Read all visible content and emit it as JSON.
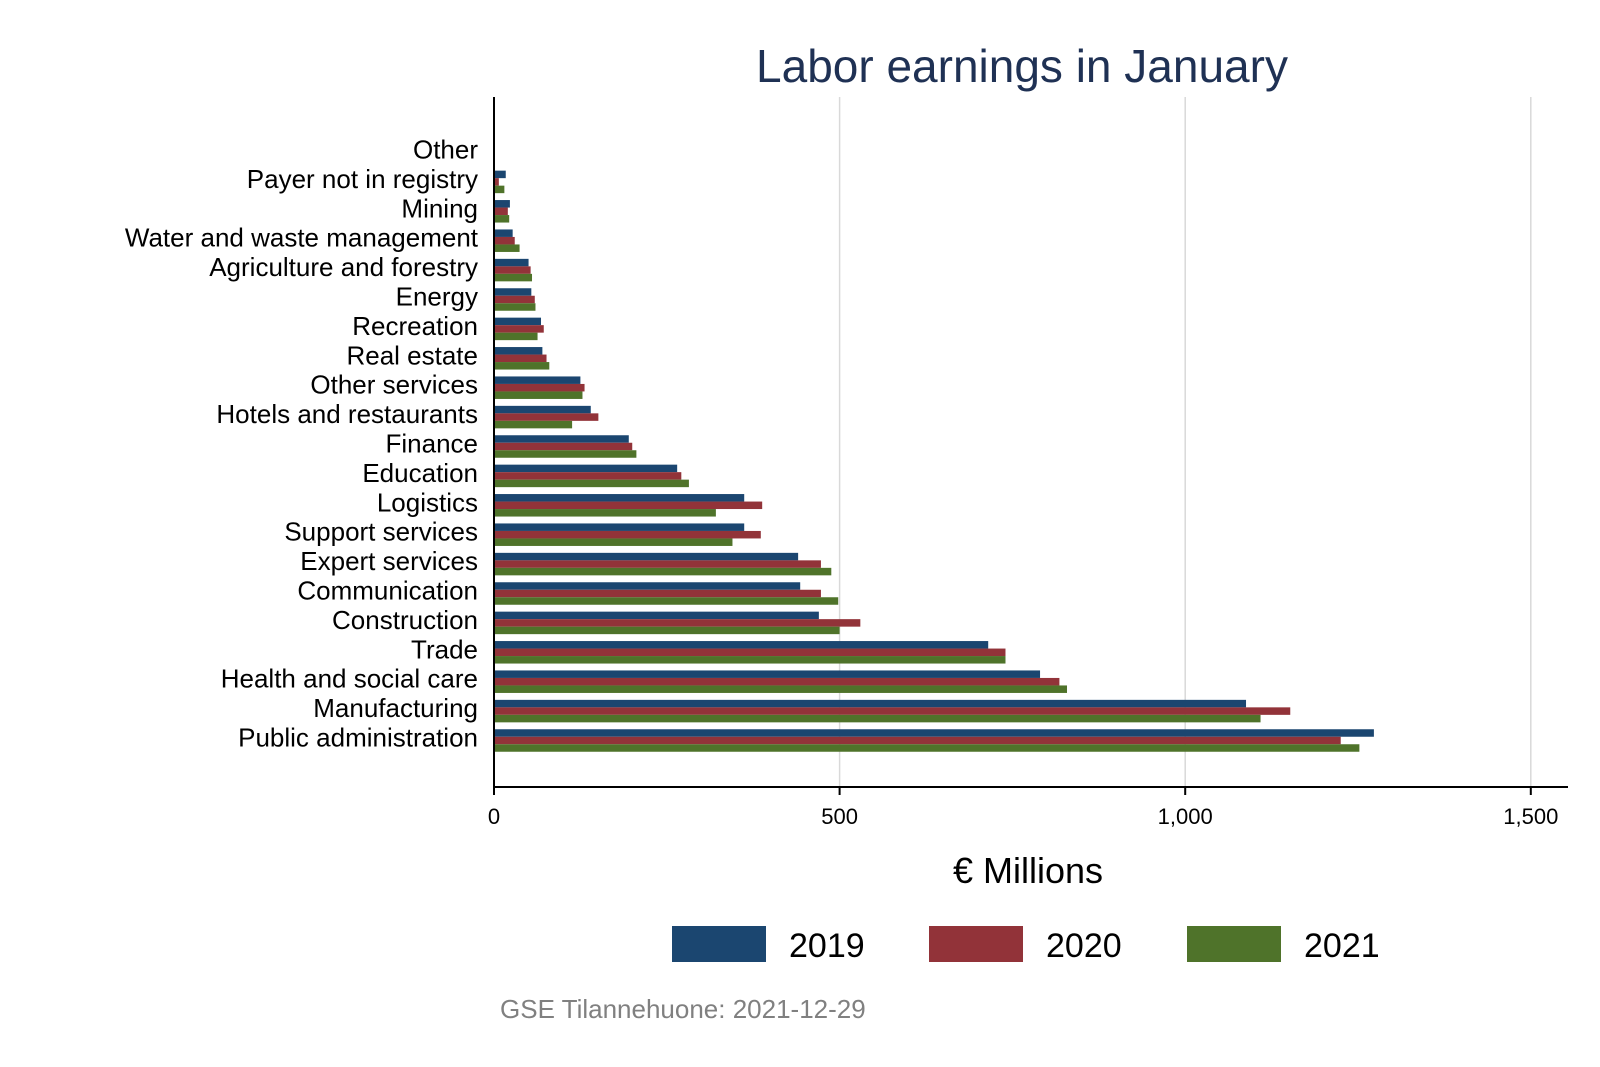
{
  "chart_data": {
    "type": "bar",
    "orientation": "horizontal",
    "title": "Labor earnings in January",
    "xlabel": "€ Millions",
    "xlim": [
      0,
      1550
    ],
    "xticks": [
      0,
      500,
      1000,
      1500
    ],
    "xtick_labels": [
      "0",
      "500",
      "1,000",
      "1,500"
    ],
    "grid": true,
    "legend_position": "bottom",
    "source_note": "GSE Tilannehuone: 2021-12-29",
    "categories": [
      "Other",
      "Payer not in registry",
      "Mining",
      "Water and waste management",
      "Agriculture and forestry",
      "Energy",
      "Recreation",
      "Real estate",
      "Other services",
      "Hotels and restaurants",
      "Finance",
      "Education",
      "Logistics",
      "Support services",
      "Expert services",
      "Communication",
      "Construction",
      "Trade",
      "Health and social care",
      "Manufacturing",
      "Public administration"
    ],
    "series": [
      {
        "name": "2019",
        "color": "#1b4670",
        "values": [
          1,
          17,
          23,
          27,
          50,
          54,
          68,
          70,
          125,
          140,
          195,
          265,
          362,
          362,
          440,
          443,
          470,
          715,
          790,
          1088,
          1273
        ]
      },
      {
        "name": "2020",
        "color": "#923339",
        "values": [
          1,
          7,
          20,
          30,
          53,
          59,
          72,
          76,
          131,
          151,
          200,
          271,
          388,
          386,
          473,
          473,
          530,
          740,
          818,
          1152,
          1225
        ]
      },
      {
        "name": "2021",
        "color": "#4f732a",
        "values": [
          1,
          15,
          22,
          37,
          55,
          60,
          63,
          80,
          128,
          113,
          206,
          282,
          321,
          345,
          488,
          498,
          500,
          740,
          829,
          1109,
          1252
        ]
      }
    ]
  }
}
